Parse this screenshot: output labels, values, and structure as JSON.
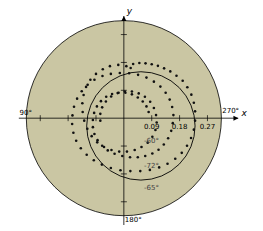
{
  "chart_data": {
    "type": "scatter",
    "xlabel": "x",
    "ylabel": "y",
    "xlim": [
      -0.34,
      0.37
    ],
    "ylim": [
      -0.345,
      0.33
    ],
    "xticks": [
      0.09,
      0.18,
      0.27
    ],
    "yticks": [
      0.09,
      0.18,
      0.27
    ],
    "tick_labels": "x",
    "color": "#111111",
    "marker": "dot",
    "disk": {
      "center": [
        0.0,
        0.0
      ],
      "radius": 0.315,
      "color": "#cac6a3"
    },
    "fit_circle": {
      "center": [
        0.055,
        -0.025
      ],
      "radius": 0.175,
      "color": "#000000"
    },
    "annotations": [
      {
        "text": "270°",
        "x": 0.345,
        "y": 0.012
      },
      {
        "text": "180°",
        "x": 0.003,
        "y": -0.34
      },
      {
        "text": "90°",
        "x": -0.337,
        "y": 0.008
      },
      {
        "text": "-60°",
        "x": 0.065,
        "y": -0.075
      },
      {
        "text": "-72°",
        "x": 0.065,
        "y": -0.155
      },
      {
        "text": "-65°",
        "x": 0.065,
        "y": -0.225
      }
    ],
    "x": [
      0.03,
      0.05,
      0.07,
      0.09,
      0.11,
      0.13,
      0.15,
      0.17,
      0.19,
      0.205,
      0.218,
      0.226,
      0.23,
      0.23,
      0.226,
      0.217,
      0.204,
      0.187,
      0.166,
      0.141,
      0.114,
      0.084,
      0.053,
      0.021,
      -0.011,
      -0.042,
      -0.071,
      -0.097,
      -0.12,
      -0.139,
      -0.154,
      -0.163,
      -0.167,
      -0.166,
      -0.161,
      -0.151,
      -0.136,
      -0.117,
      -0.095,
      -0.069,
      -0.042,
      -0.013,
      0.017,
      0.046,
      0.073,
      0.097,
      0.118,
      0.135,
      0.148,
      0.156,
      0.16,
      0.158,
      0.153,
      0.143,
      0.129,
      0.112,
      0.092,
      0.069,
      0.045,
      0.02,
      -0.005,
      -0.03,
      -0.052,
      -0.07,
      -0.085,
      -0.095,
      -0.1,
      -0.1,
      -0.096,
      -0.087,
      -0.074,
      -0.057,
      -0.038,
      -0.017,
      0.005,
      0.026,
      0.045,
      0.061,
      0.073,
      0.08,
      0.022,
      0.008,
      -0.018,
      -0.045,
      -0.068,
      -0.09,
      -0.108,
      -0.122,
      -0.13,
      -0.134,
      -0.133,
      -0.128,
      -0.118,
      -0.104,
      -0.086,
      -0.064,
      -0.04,
      -0.015,
      0.01,
      0.035,
      0.057,
      0.077,
      0.092,
      0.102,
      0.106,
      0.104,
      0.097,
      0.085,
      0.068,
      0.048,
      0.026,
      0.003,
      -0.02,
      -0.041,
      -0.058,
      -0.07,
      -0.076,
      -0.076
    ],
    "values": [
      0.175,
      0.178,
      0.177,
      0.174,
      0.169,
      0.161,
      0.151,
      0.137,
      0.121,
      0.1,
      0.076,
      0.05,
      0.022,
      -0.008,
      -0.037,
      -0.064,
      -0.089,
      -0.112,
      -0.131,
      -0.147,
      -0.159,
      -0.167,
      -0.171,
      -0.171,
      -0.168,
      -0.161,
      -0.15,
      -0.136,
      -0.118,
      -0.097,
      -0.073,
      -0.047,
      -0.019,
      0.009,
      0.037,
      0.063,
      0.087,
      0.108,
      0.124,
      0.136,
      0.143,
      0.146,
      0.145,
      0.14,
      0.131,
      0.118,
      0.102,
      0.082,
      0.06,
      0.036,
      0.01,
      -0.016,
      -0.041,
      -0.065,
      -0.085,
      -0.102,
      -0.114,
      -0.122,
      -0.126,
      -0.126,
      -0.122,
      -0.115,
      -0.104,
      -0.089,
      -0.071,
      -0.051,
      -0.029,
      -0.006,
      0.017,
      0.038,
      0.055,
      0.069,
      0.078,
      0.082,
      0.082,
      0.077,
      0.067,
      0.054,
      0.038,
      0.02,
      0.162,
      0.168,
      0.172,
      0.168,
      0.158,
      0.143,
      0.124,
      0.101,
      0.075,
      0.048,
      0.02,
      -0.008,
      -0.034,
      -0.058,
      -0.078,
      -0.093,
      -0.103,
      -0.108,
      -0.108,
      -0.103,
      -0.093,
      -0.079,
      -0.06,
      -0.038,
      -0.014,
      0.01,
      0.033,
      0.053,
      0.069,
      0.08,
      0.086,
      0.086,
      0.081,
      0.07,
      0.054,
      0.035,
      0.014,
      -0.008
    ]
  }
}
